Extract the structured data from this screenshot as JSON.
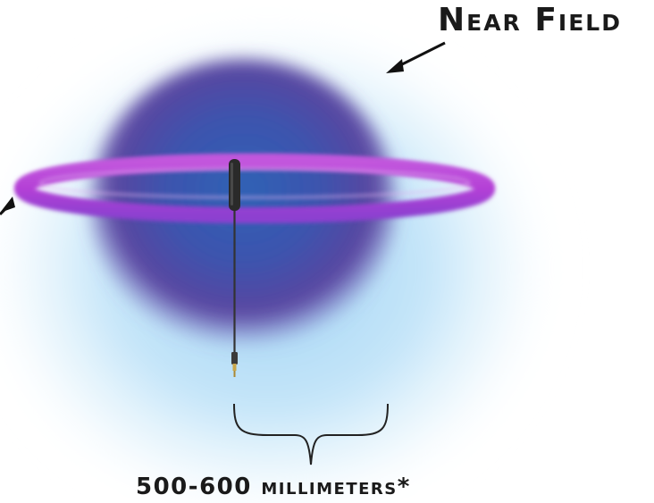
{
  "labels": {
    "near_field": "Near Field",
    "distance": "500-600 millimeters*"
  },
  "colors": {
    "background": "#ffffff",
    "outer_glow": "#a9dcf7",
    "sphere_core": "#3f4fae",
    "sphere_edge": "#5a3f9a",
    "ring": "#b94ad8",
    "microphone": "#2a2a2a",
    "arrow": "#111111"
  },
  "icons": {
    "microphone": "microphone-icon",
    "brace": "curly-brace-icon"
  }
}
